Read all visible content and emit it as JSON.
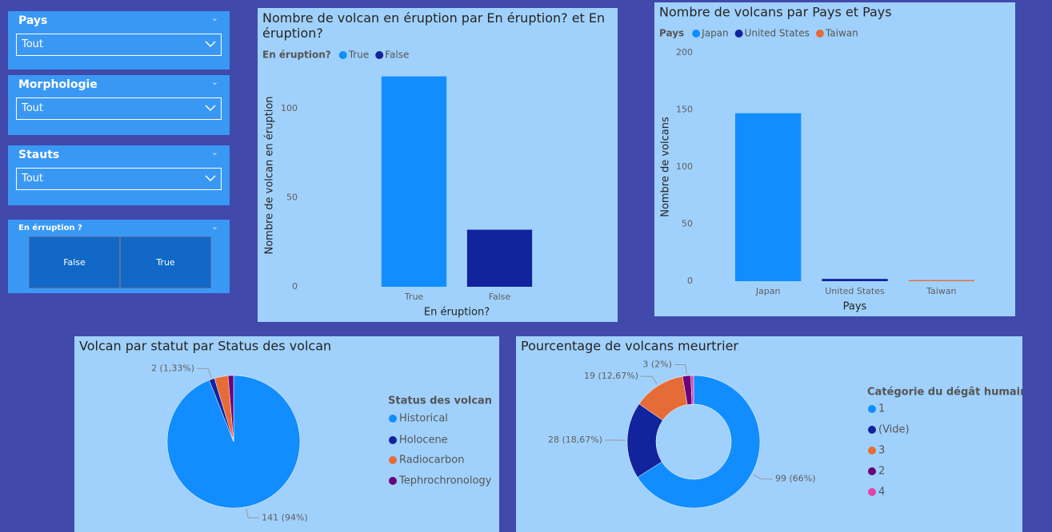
{
  "slicers": [
    {
      "title": "Pays",
      "value": "Tout"
    },
    {
      "title": "Morphologie",
      "value": "Tout"
    },
    {
      "title": "Stauts",
      "value": "Tout"
    },
    {
      "title": "En érruption ?",
      "options": [
        "False",
        "True"
      ]
    }
  ],
  "chart_data": [
    {
      "type": "bar",
      "title": "Nombre de volcan en éruption par En éruption? et En éruption?",
      "legend_title": "En éruption?",
      "x_label": "En éruption?",
      "y_label": "Nombre de volcan en éruption",
      "categories": [
        "True",
        "False"
      ],
      "values": [
        118,
        32
      ],
      "colors": [
        "#118dff",
        "#12239e"
      ],
      "ylim": [
        0,
        125
      ],
      "yticks": [
        0,
        50,
        100
      ]
    },
    {
      "type": "bar",
      "title": "Nombre de volcans par Pays et Pays",
      "legend_title": "Pays",
      "x_label": "Pays",
      "y_label": "Nombre de volcans",
      "categories": [
        "Japan",
        "United States",
        "Taiwan"
      ],
      "values": [
        147,
        2,
        1
      ],
      "colors": [
        "#118dff",
        "#12239e",
        "#e66c37"
      ],
      "ylim": [
        0,
        200
      ],
      "yticks": [
        0,
        50,
        100,
        150,
        200
      ]
    },
    {
      "type": "pie",
      "title": "Volcan par statut par Status des volcan",
      "legend_title": "Status des volcan",
      "categories": [
        "Historical",
        "Holocene",
        "Radiocarbon",
        "Tephrochronology"
      ],
      "values": [
        141,
        2,
        5,
        2
      ],
      "value_labels": [
        "141 (94%)",
        "2 (1,33%)",
        null,
        null
      ],
      "colors": [
        "#118dff",
        "#12239e",
        "#e66c37",
        "#6b007b"
      ]
    },
    {
      "type": "donut",
      "title": "Pourcentage de volcans meurtrier",
      "legend_title": "Catégorie du dégât humain",
      "categories": [
        "1",
        "(Vide)",
        "3",
        "2",
        "4"
      ],
      "values": [
        99,
        28,
        19,
        3,
        1
      ],
      "value_labels": [
        "99 (66%)",
        "28 (18,67%)",
        "19 (12,67%)",
        "3 (2%)",
        null
      ],
      "colors": [
        "#118dff",
        "#12239e",
        "#e66c37",
        "#6b007b",
        "#e044a7"
      ]
    }
  ]
}
